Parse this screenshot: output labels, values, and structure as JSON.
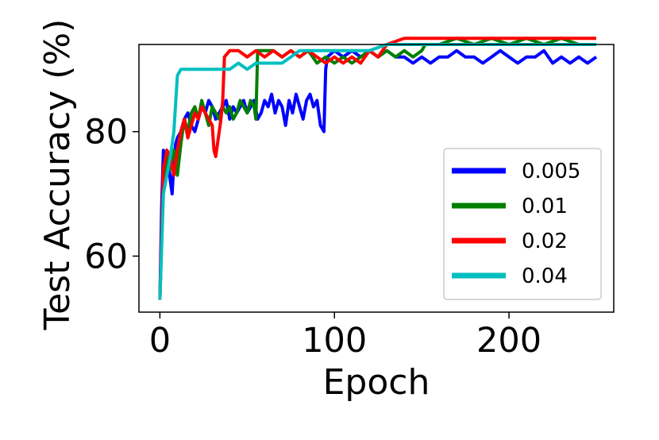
{
  "chart_data": {
    "type": "line",
    "title": "",
    "xlabel": "Epoch",
    "ylabel": "Test Accuracy (%)",
    "xlim": [
      -12,
      260
    ],
    "ylim": [
      51,
      94
    ],
    "xticks": [
      "0",
      "100",
      "200"
    ],
    "yticks": [
      "60",
      "80"
    ],
    "grid": false,
    "legend_position": "lower-right",
    "series": [
      {
        "name": "0.005",
        "color": "#0000ff",
        "x": [
          0,
          1,
          2,
          3,
          4,
          5,
          6,
          7,
          8,
          9,
          10,
          12,
          14,
          16,
          18,
          20,
          22,
          24,
          26,
          28,
          30,
          32,
          34,
          36,
          38,
          40,
          42,
          44,
          46,
          48,
          50,
          52,
          54,
          56,
          58,
          60,
          62,
          64,
          66,
          68,
          70,
          72,
          74,
          76,
          78,
          80,
          82,
          84,
          86,
          88,
          90,
          92,
          94,
          95,
          96,
          100,
          105,
          110,
          115,
          120,
          125,
          130,
          135,
          140,
          145,
          150,
          155,
          160,
          165,
          170,
          175,
          180,
          185,
          190,
          195,
          200,
          205,
          210,
          215,
          220,
          225,
          230,
          235,
          240,
          245,
          250
        ],
        "y": [
          53,
          68,
          77,
          76,
          77,
          75,
          72,
          70,
          75,
          78,
          79,
          80,
          82,
          83,
          81,
          80,
          82,
          84,
          83,
          85,
          84,
          82,
          83,
          84,
          85,
          82,
          84,
          83,
          84,
          85,
          83,
          84,
          85,
          82,
          83,
          85,
          84,
          86,
          83,
          85,
          84,
          81,
          85,
          83,
          86,
          84,
          82,
          85,
          86,
          84,
          85,
          81,
          80,
          90,
          92,
          93,
          92,
          93,
          92,
          93,
          92,
          93,
          92,
          92,
          91,
          92,
          91,
          92,
          92,
          93,
          92,
          92,
          91,
          92,
          93,
          92,
          91,
          92,
          92,
          93,
          91,
          92,
          91,
          92,
          91,
          92
        ]
      },
      {
        "name": "0.01",
        "color": "#008000",
        "x": [
          0,
          2,
          4,
          6,
          8,
          10,
          12,
          14,
          16,
          18,
          20,
          22,
          24,
          26,
          28,
          30,
          32,
          34,
          36,
          38,
          40,
          42,
          44,
          46,
          48,
          50,
          52,
          54,
          55,
          56,
          60,
          65,
          70,
          75,
          80,
          85,
          90,
          95,
          100,
          105,
          110,
          115,
          120,
          125,
          130,
          135,
          140,
          145,
          150,
          152,
          160,
          170,
          180,
          190,
          200,
          210,
          220,
          230,
          240,
          250
        ],
        "y": [
          53,
          72,
          76,
          74,
          77,
          73,
          78,
          82,
          80,
          83,
          84,
          82,
          85,
          83,
          81,
          84,
          83,
          82,
          84,
          83,
          84,
          82,
          83,
          85,
          84,
          83,
          85,
          84,
          82,
          93,
          93,
          93,
          92,
          93,
          92,
          93,
          91,
          92,
          91,
          92,
          91,
          92,
          93,
          92,
          93,
          92,
          93,
          92,
          93,
          94,
          94,
          95,
          94,
          95,
          94,
          95,
          94,
          95,
          94,
          94
        ]
      },
      {
        "name": "0.02",
        "color": "#ff0000",
        "x": [
          0,
          2,
          4,
          6,
          8,
          10,
          12,
          14,
          16,
          18,
          20,
          22,
          24,
          26,
          28,
          30,
          31,
          32,
          33,
          34,
          35,
          36,
          37,
          40,
          45,
          50,
          55,
          60,
          65,
          70,
          75,
          80,
          85,
          90,
          95,
          100,
          105,
          110,
          115,
          120,
          125,
          130,
          140,
          150,
          160,
          170,
          180,
          190,
          200,
          210,
          220,
          230,
          240,
          250
        ],
        "y": [
          53,
          74,
          77,
          76,
          73,
          77,
          80,
          82,
          79,
          81,
          83,
          82,
          84,
          83,
          82,
          81,
          77,
          76,
          78,
          80,
          82,
          85,
          92,
          93,
          93,
          92,
          93,
          92,
          93,
          92,
          93,
          92,
          93,
          92,
          91,
          92,
          91,
          92,
          91,
          93,
          92,
          94,
          95,
          95,
          95,
          95,
          95,
          95,
          95,
          95,
          95,
          95,
          95,
          95
        ]
      },
      {
        "name": "0.04",
        "color": "#00bfbf",
        "x": [
          0,
          2,
          4,
          6,
          8,
          10,
          12,
          16,
          20,
          25,
          30,
          35,
          40,
          45,
          50,
          55,
          60,
          65,
          70,
          75,
          80,
          85,
          90,
          95,
          100,
          110,
          120,
          130,
          140,
          150,
          160,
          170,
          180,
          190,
          200,
          210,
          220,
          230,
          240,
          250
        ],
        "y": [
          53,
          70,
          73,
          76,
          80,
          89,
          90,
          90,
          90,
          90,
          90,
          90,
          90,
          91,
          90,
          91,
          91,
          91,
          91,
          92,
          93,
          93,
          93,
          93,
          93,
          93,
          93,
          94,
          94,
          94,
          94,
          94,
          94,
          94,
          94,
          94,
          94,
          94,
          94,
          94
        ]
      }
    ]
  }
}
